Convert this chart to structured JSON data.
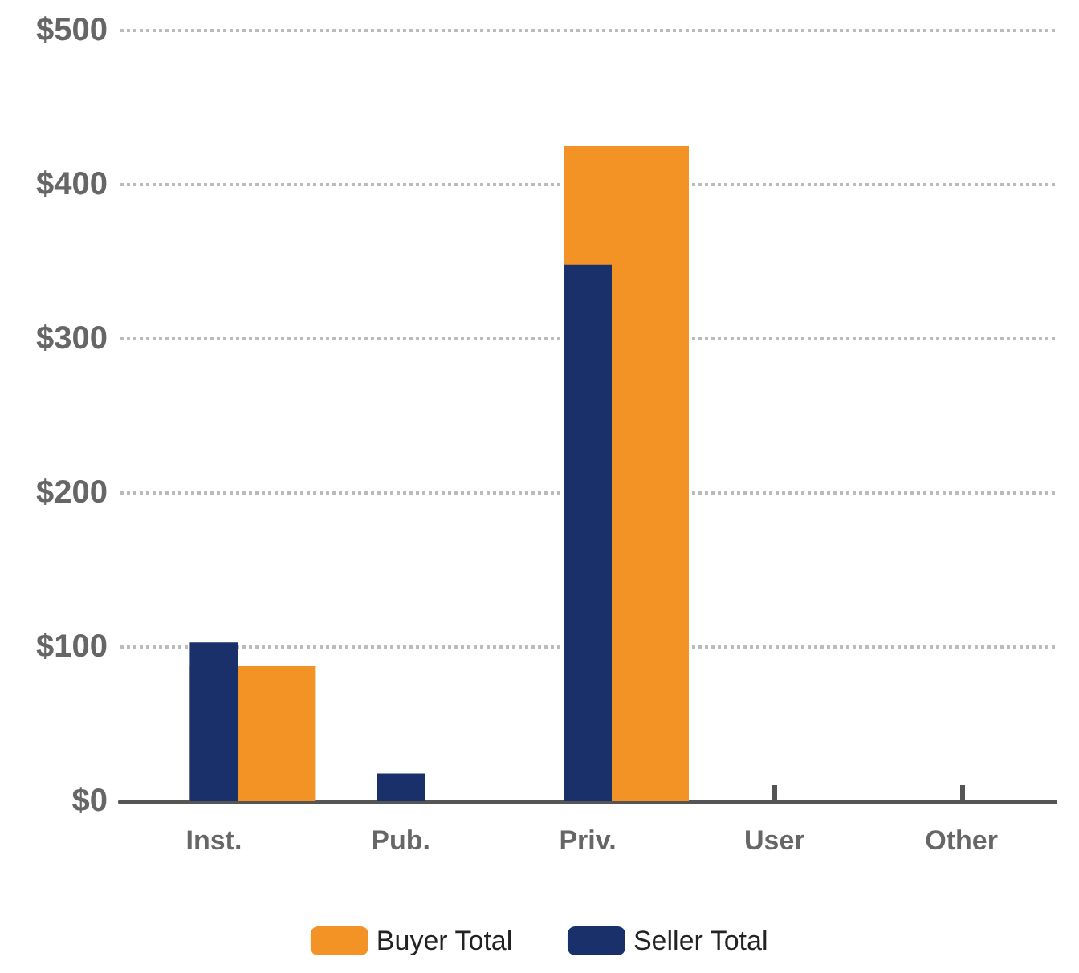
{
  "chart_data": {
    "type": "bar",
    "categories": [
      "Inst.",
      "Pub.",
      "Priv.",
      "User",
      "Other"
    ],
    "series": [
      {
        "name": "Buyer Total",
        "color": "#f39325",
        "values": [
          88,
          null,
          425,
          null,
          null
        ]
      },
      {
        "name": "Seller Total",
        "color": "#1a306b",
        "values": [
          103,
          18,
          348,
          null,
          null
        ]
      }
    ],
    "ylim": [
      0,
      500
    ],
    "yticks": [
      {
        "value": 0,
        "label": "$0"
      },
      {
        "value": 100,
        "label": "$100"
      },
      {
        "value": 200,
        "label": "$200"
      },
      {
        "value": 300,
        "label": "$300"
      },
      {
        "value": 400,
        "label": "$400"
      },
      {
        "value": 500,
        "label": "$500"
      }
    ],
    "grid": "y",
    "legend": "bottom"
  }
}
